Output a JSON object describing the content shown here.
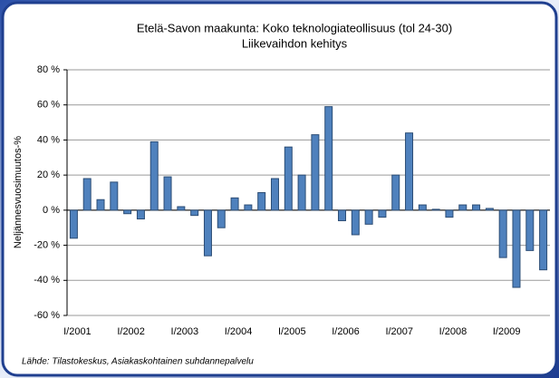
{
  "chart_data": {
    "type": "bar",
    "title": "Etelä-Savon maakunta: Koko teknologiateollisuus (tol 24-30)",
    "subtitle": "Liikevaihdon kehitys",
    "y_label": "Neljännesvuosimuutos-%",
    "source": "Lähde: Tilastokeskus, Asiakaskohtainen suhdannepalvelu",
    "categories": [
      "I/2001",
      null,
      null,
      null,
      "I/2002",
      null,
      null,
      null,
      "I/2003",
      null,
      null,
      null,
      "I/2004",
      null,
      null,
      null,
      "I/2005",
      null,
      null,
      null,
      "I/2006",
      null,
      null,
      null,
      "I/2007",
      null,
      null,
      null,
      "I/2008",
      null,
      null,
      null,
      "I/2009",
      null,
      null,
      null
    ],
    "values": [
      -16,
      18,
      6,
      16,
      -2,
      -5,
      39,
      19,
      2,
      -3,
      -26,
      -10,
      7,
      3,
      10,
      18,
      36,
      20,
      43,
      59,
      -6,
      -14,
      -8,
      -4,
      20,
      44,
      3,
      0.5,
      -4,
      3,
      3,
      1,
      -27,
      -44,
      -23,
      -34
    ],
    "color": "#4f81bd",
    "ylim": [
      -60,
      80
    ],
    "yticks": [
      {
        "value": -60,
        "label": "-60 %"
      },
      {
        "value": -40,
        "label": "-40 %"
      },
      {
        "value": -20,
        "label": "-20 %"
      },
      {
        "value": 0,
        "label": "0 %"
      },
      {
        "value": 20,
        "label": "20 %"
      },
      {
        "value": 40,
        "label": "40 %"
      },
      {
        "value": 60,
        "label": "60 %"
      },
      {
        "value": 80,
        "label": "80 %"
      }
    ],
    "grid": true
  }
}
